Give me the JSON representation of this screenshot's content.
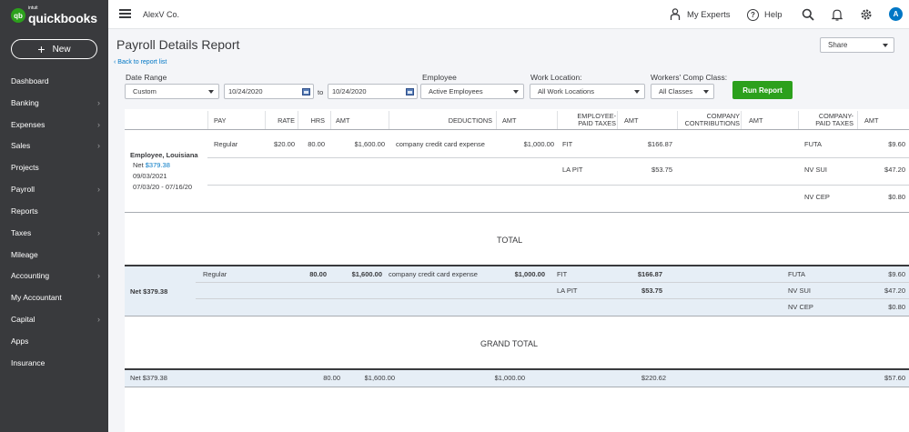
{
  "app": {
    "logo_intuit": "intuit",
    "logo_name": "quickbooks",
    "logo_badge": "qb",
    "new_label": "New",
    "company": "AlexV Co.",
    "my_experts": "My Experts",
    "help": "Help",
    "avatar_initial": "A"
  },
  "sidebar": {
    "items": [
      {
        "label": "Dashboard",
        "chevron": false
      },
      {
        "label": "Banking",
        "chevron": true
      },
      {
        "label": "Expenses",
        "chevron": true
      },
      {
        "label": "Sales",
        "chevron": true
      },
      {
        "label": "Projects",
        "chevron": false
      },
      {
        "label": "Payroll",
        "chevron": true
      },
      {
        "label": "Reports",
        "chevron": false
      },
      {
        "label": "Taxes",
        "chevron": true
      },
      {
        "label": "Mileage",
        "chevron": false
      },
      {
        "label": "Accounting",
        "chevron": true
      },
      {
        "label": "My Accountant",
        "chevron": false
      },
      {
        "label": "Capital",
        "chevron": true
      },
      {
        "label": "Apps",
        "chevron": false
      },
      {
        "label": "Insurance",
        "chevron": false
      }
    ]
  },
  "page": {
    "title": "Payroll Details Report",
    "share": "Share",
    "back": "Back to report list"
  },
  "filters": {
    "date_range_label": "Date Range",
    "date_range_value": "Custom",
    "date_from": "10/24/2020",
    "to": "to",
    "date_to": "10/24/2020",
    "employee_label": "Employee",
    "employee_value": "Active Employees",
    "work_location_label": "Work Location:",
    "work_location_value": "All Work Locations",
    "comp_class_label": "Workers' Comp Class:",
    "comp_class_value": "All Classes",
    "run_report": "Run Report"
  },
  "columns": {
    "pay": "PAY",
    "rate": "RATE",
    "hrs": "HRS",
    "amt": "AMT",
    "deductions": "DEDUCTIONS",
    "emp_taxes_1": "EMPLOYEE-",
    "emp_taxes_2": "PAID TAXES",
    "contrib_1": "COMPANY",
    "contrib_2": "CONTRIBUTIONS",
    "co_taxes_1": "COMPANY-",
    "co_taxes_2": "PAID TAXES"
  },
  "employee": {
    "name": "Employee, Louisiana",
    "net_label": "Net",
    "net_value": "$379.38",
    "pay_date": "09/03/2021",
    "period": "07/03/20 -  07/16/20",
    "pay_type": "Regular",
    "rate": "$20.00",
    "hrs": "80.00",
    "amt": "$1,600.00",
    "deduction": "company credit card expense",
    "deduction_amt": "$1,000.00",
    "emp_taxes": [
      {
        "name": "FIT",
        "amt": "$166.87"
      },
      {
        "name": "LA PIT",
        "amt": "$53.75"
      }
    ],
    "co_taxes": [
      {
        "name": "FUTA",
        "amt": "$9.60"
      },
      {
        "name": "NV SUI",
        "amt": "$47.20"
      },
      {
        "name": "NV CEP",
        "amt": "$0.80"
      }
    ]
  },
  "total": {
    "title": "TOTAL",
    "net": "Net $379.38",
    "pay_type": "Regular",
    "hrs": "80.00",
    "amt": "$1,600.00",
    "deduction": "company credit card expense",
    "deduction_amt": "$1,000.00",
    "emp_taxes": [
      {
        "name": "FIT",
        "amt": "$166.87"
      },
      {
        "name": "LA PIT",
        "amt": "$53.75"
      }
    ],
    "co_taxes": [
      {
        "name": "FUTA",
        "amt": "$9.60"
      },
      {
        "name": "NV SUI",
        "amt": "$47.20"
      },
      {
        "name": "NV CEP",
        "amt": "$0.80"
      }
    ]
  },
  "grand_total": {
    "title": "GRAND TOTAL",
    "net": "Net $379.38",
    "hrs": "80.00",
    "amt": "$1,600.00",
    "deduction_amt": "$1,000.00",
    "emp_taxes_amt": "$220.62",
    "co_taxes_amt": "$57.60"
  },
  "colors": {
    "sidebar_bg": "#393a3d",
    "brand_green": "#2ca01c",
    "link_blue": "#0077c5",
    "band_bg": "#e6eef6"
  },
  "icons": [
    "hamburger-icon",
    "person-icon",
    "help-icon",
    "search-icon",
    "bell-icon",
    "gear-icon",
    "calendar-icon",
    "chevron-right-icon",
    "chevron-down-icon"
  ]
}
